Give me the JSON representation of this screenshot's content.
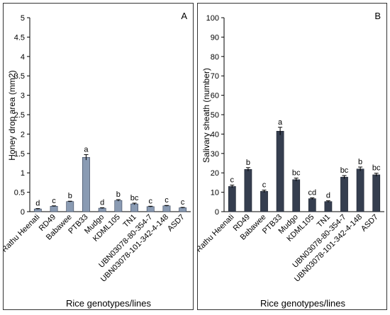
{
  "chart_data": [
    {
      "type": "bar",
      "panel_label": "A",
      "title": "",
      "xlabel": "Rice genotypes/lines",
      "ylabel": "Honey drop area (mm2)",
      "ylim": [
        0,
        5
      ],
      "yticks": [
        0,
        0.5,
        1,
        1.5,
        2,
        2.5,
        3,
        3.5,
        4,
        4.5,
        5
      ],
      "ytick_labels": [
        "0",
        "0.5",
        "1",
        "1.5",
        "2",
        "2.5",
        "3",
        "3.5",
        "4",
        "4.5",
        "5"
      ],
      "grid": false,
      "bar_color": "#8a9bb3",
      "bar_edge_color": "#333f55",
      "categories": [
        "Rathu Heenati",
        "RD49",
        "Babawee",
        "PTB33",
        "Mudgo",
        "KDML105",
        "TN1",
        "UBN03078-80-354-7",
        "UBN03078-101-342-4-148",
        "ASD7"
      ],
      "values": [
        0.07,
        0.14,
        0.26,
        1.4,
        0.09,
        0.29,
        0.2,
        0.13,
        0.15,
        0.1
      ],
      "errors": [
        0.01,
        0.01,
        0.01,
        0.07,
        0.01,
        0.02,
        0.02,
        0.01,
        0.01,
        0.01
      ],
      "letters": [
        "d",
        "c",
        "b",
        "a",
        "d",
        "b",
        "bc",
        "c",
        "c",
        "c"
      ]
    },
    {
      "type": "bar",
      "panel_label": "B",
      "title": "",
      "xlabel": "Rice genotypes/lines",
      "ylabel": "Salivary sheath (number)",
      "ylim": [
        0,
        100
      ],
      "yticks": [
        0,
        10,
        20,
        30,
        40,
        50,
        60,
        70,
        80,
        90,
        100
      ],
      "ytick_labels": [
        "0",
        "10",
        "20",
        "30",
        "40",
        "50",
        "60",
        "70",
        "80",
        "90",
        "100"
      ],
      "grid": false,
      "bar_color": "#353e4f",
      "bar_edge_color": "#1f2530",
      "categories": [
        "Rathu Heenati",
        "RD49",
        "Babawee",
        "PTB33",
        "Mudgo",
        "KDML105",
        "TN1",
        "UBN03078-80-354-7",
        "UBN03078-101-342-4-148",
        "ASD7"
      ],
      "values": [
        13,
        21.8,
        10.5,
        41.5,
        16.5,
        6.7,
        5.2,
        17.8,
        22,
        19
      ],
      "errors": [
        0.7,
        0.9,
        0.6,
        2.0,
        0.8,
        0.4,
        0.4,
        0.8,
        1.0,
        0.8
      ],
      "letters": [
        "c",
        "b",
        "c",
        "a",
        "bc",
        "cd",
        "d",
        "bc",
        "b",
        "bc"
      ]
    }
  ]
}
